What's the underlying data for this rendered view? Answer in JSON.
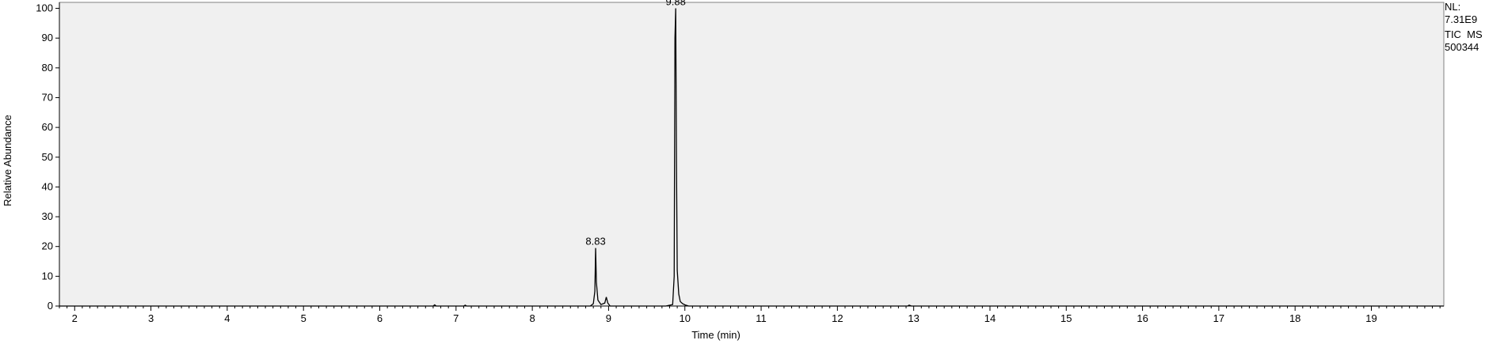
{
  "chart_data": {
    "type": "line",
    "title": "",
    "xlabel": "Time (min)",
    "ylabel": "Relative Abundance",
    "xlim": [
      1.8,
      19.95
    ],
    "ylim": [
      0,
      102
    ],
    "x_ticks": [
      2,
      3,
      4,
      5,
      6,
      7,
      8,
      9,
      10,
      11,
      12,
      13,
      14,
      15,
      16,
      17,
      18,
      19
    ],
    "y_ticks": [
      0,
      10,
      20,
      30,
      40,
      50,
      60,
      70,
      80,
      90,
      100
    ],
    "grid": false,
    "plot_background": "#f0f0f0",
    "line_color": "#000000",
    "annotations": [
      {
        "x": 8.83,
        "y": 19.5,
        "text": "8.83"
      },
      {
        "x": 9.88,
        "y": 100,
        "text": "9.88"
      }
    ],
    "series": [
      {
        "x": [
          1.8,
          6.7,
          6.72,
          6.74,
          7.1,
          7.12,
          7.14,
          8.76,
          8.8,
          8.82,
          8.83,
          8.84,
          8.86,
          8.9,
          8.95,
          8.97,
          8.99,
          9.02,
          9.75,
          9.84,
          9.86,
          9.87,
          9.88,
          9.89,
          9.9,
          9.92,
          9.94,
          9.97,
          10.0,
          10.05,
          12.92,
          12.94,
          12.97,
          19.95
        ],
        "y": [
          0,
          0,
          0.4,
          0,
          0,
          0.3,
          0,
          0,
          0.8,
          5,
          19.5,
          8,
          2,
          0.5,
          1,
          3,
          1,
          0,
          0,
          0.5,
          10,
          90,
          100,
          48,
          12,
          4,
          1.5,
          0.8,
          0.4,
          0,
          0,
          0.3,
          0,
          0
        ]
      }
    ]
  },
  "info": {
    "line1": "NL:",
    "line2": "7.31E9",
    "line3": "TIC  MS",
    "line4": "500344"
  }
}
